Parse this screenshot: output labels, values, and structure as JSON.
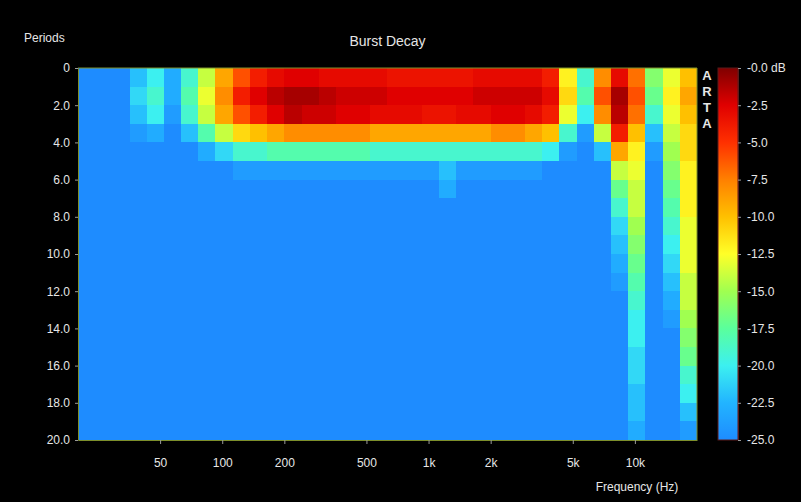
{
  "chart_data": {
    "type": "heatmap",
    "title": "Burst Decay",
    "x_label": "Frequency (Hz)",
    "y_label": "Periods",
    "annotation": "ARTA",
    "log": "x",
    "xlim": [
      20,
      20000
    ],
    "ylim": [
      0,
      20
    ],
    "xticks": [
      50,
      100,
      200,
      500,
      {
        "value": 1000,
        "label": "1k"
      },
      {
        "value": 2000,
        "label": "2k"
      },
      {
        "value": 5000,
        "label": "5k"
      },
      {
        "value": 10000,
        "label": "10k"
      }
    ],
    "yticks": [
      0,
      {
        "value": 2,
        "label": "2.0"
      },
      {
        "value": 4,
        "label": "4.0"
      },
      {
        "value": 6,
        "label": "6.0"
      },
      {
        "value": 8,
        "label": "8.0"
      },
      {
        "value": 10,
        "label": "10.0"
      },
      {
        "value": 12,
        "label": "12.0"
      },
      {
        "value": 14,
        "label": "14.0"
      },
      {
        "value": 16,
        "label": "16.0"
      },
      {
        "value": 18,
        "label": "18.0"
      },
      {
        "value": 20,
        "label": "20.0"
      }
    ],
    "colorbar_lim": [
      -25,
      0
    ],
    "colorbar_ticks": [
      {
        "value": 0,
        "label": "-0.0 dB"
      },
      -2.5,
      {
        "value": -5,
        "label": "-5.0"
      },
      -7.5,
      {
        "value": -10,
        "label": "-10.0"
      },
      -12.5,
      {
        "value": -15,
        "label": "-15.0"
      },
      -17.5,
      {
        "value": -20,
        "label": "-20.0"
      },
      -22.5,
      {
        "value": -25,
        "label": "-25.0"
      }
    ],
    "x": [
      22,
      26.7,
      32.3,
      39.1,
      47.4,
      57.5,
      69.6,
      84.3,
      102,
      124,
      150,
      182,
      220,
      267,
      323,
      391,
      474,
      574,
      696,
      843,
      1021,
      1237,
      1499,
      1816,
      2200,
      2665,
      3229,
      3912,
      4739,
      5742,
      6956,
      8427,
      10210,
      12369,
      14985,
      18154
    ],
    "y": [
      0.5,
      1.5,
      2.5,
      3.5,
      4.5,
      5.5,
      6.5,
      7.5,
      8.5,
      9.5,
      10.5,
      11.5,
      12.5,
      13.5,
      14.5,
      15.5,
      16.5,
      17.5,
      18.5,
      19.5
    ],
    "values": [
      [
        -25,
        -25,
        -25,
        -22,
        -20,
        -23,
        -19,
        -14,
        -9,
        -6,
        -4,
        -3,
        -2.5,
        -2.5,
        -3,
        -3,
        -3,
        -3,
        -3.5,
        -3.5,
        -3.5,
        -3.5,
        -3.5,
        -3,
        -3,
        -3,
        -3,
        -4,
        -12,
        -19,
        -8,
        -3,
        -7,
        -16,
        -13,
        -10
      ],
      [
        -25,
        -25,
        -25,
        -21,
        -19,
        -23,
        -18,
        -13,
        -8,
        -4,
        -2.5,
        -1.5,
        -1,
        -1,
        -1.5,
        -2,
        -2,
        -2,
        -2.5,
        -2.5,
        -2.5,
        -2.5,
        -2.5,
        -2,
        -2,
        -2,
        -2,
        -3,
        -11,
        -18,
        -6,
        -1,
        -6,
        -17,
        -12,
        -9
      ],
      [
        -25,
        -25,
        -25,
        -22,
        -20,
        -24,
        -19,
        -14,
        -9,
        -6,
        -4,
        -2.5,
        -1.5,
        -2,
        -2,
        -2.5,
        -2.5,
        -3,
        -3,
        -3,
        -3.5,
        -3.5,
        -3,
        -3,
        -2.5,
        -2.5,
        -3,
        -4,
        -13,
        -20,
        -8,
        -1.5,
        -7,
        -19,
        -13,
        -10
      ],
      [
        -25,
        -25,
        -25,
        -24,
        -23,
        -25,
        -22,
        -18,
        -14,
        -11,
        -10,
        -9,
        -8,
        -8,
        -8,
        -8,
        -8,
        -9,
        -9,
        -9,
        -9,
        -9,
        -9,
        -9,
        -8,
        -8,
        -9,
        -10,
        -19,
        -24,
        -14,
        -4,
        -10,
        -22,
        -14,
        -11
      ],
      [
        -25,
        -25,
        -25,
        -25,
        -25,
        -25,
        -25,
        -23,
        -21,
        -19,
        -19,
        -18,
        -18,
        -18,
        -18,
        -18,
        -18,
        -19,
        -19,
        -19,
        -19,
        -19,
        -19,
        -19,
        -19,
        -19,
        -19,
        -20,
        -24,
        -25,
        -22,
        -9,
        -12,
        -24,
        -15,
        -11
      ],
      [
        -25,
        -25,
        -25,
        -25,
        -25,
        -25,
        -25,
        -25,
        -25,
        -24,
        -24,
        -24,
        -24,
        -24,
        -24,
        -24,
        -24,
        -24,
        -24,
        -24,
        -24,
        -22,
        -24,
        -24,
        -24,
        -24,
        -24,
        -25,
        -25,
        -25,
        -25,
        -14,
        -13,
        -25,
        -16,
        -12
      ],
      [
        -25,
        -25,
        -25,
        -25,
        -25,
        -25,
        -25,
        -25,
        -25,
        -25,
        -25,
        -25,
        -25,
        -25,
        -25,
        -25,
        -25,
        -25,
        -25,
        -25,
        -25,
        -23,
        -25,
        -25,
        -25,
        -25,
        -25,
        -25,
        -25,
        -25,
        -25,
        -17,
        -14,
        -25,
        -17,
        -12
      ],
      [
        -25,
        -25,
        -25,
        -25,
        -25,
        -25,
        -25,
        -25,
        -25,
        -25,
        -25,
        -25,
        -25,
        -25,
        -25,
        -25,
        -25,
        -25,
        -25,
        -25,
        -25,
        -25,
        -25,
        -25,
        -25,
        -25,
        -25,
        -25,
        -25,
        -25,
        -25,
        -19,
        -14,
        -25,
        -18,
        -12
      ],
      [
        -25,
        -25,
        -25,
        -25,
        -25,
        -25,
        -25,
        -25,
        -25,
        -25,
        -25,
        -25,
        -25,
        -25,
        -25,
        -25,
        -25,
        -25,
        -25,
        -25,
        -25,
        -25,
        -25,
        -25,
        -25,
        -25,
        -25,
        -25,
        -25,
        -25,
        -25,
        -21,
        -15,
        -25,
        -19,
        -13
      ],
      [
        -25,
        -25,
        -25,
        -25,
        -25,
        -25,
        -25,
        -25,
        -25,
        -25,
        -25,
        -25,
        -25,
        -25,
        -25,
        -25,
        -25,
        -25,
        -25,
        -25,
        -25,
        -25,
        -25,
        -25,
        -25,
        -25,
        -25,
        -25,
        -25,
        -25,
        -25,
        -22,
        -16,
        -25,
        -20,
        -13
      ],
      [
        -25,
        -25,
        -25,
        -25,
        -25,
        -25,
        -25,
        -25,
        -25,
        -25,
        -25,
        -25,
        -25,
        -25,
        -25,
        -25,
        -25,
        -25,
        -25,
        -25,
        -25,
        -25,
        -25,
        -25,
        -25,
        -25,
        -25,
        -25,
        -25,
        -25,
        -25,
        -23,
        -17,
        -25,
        -21,
        -13
      ],
      [
        -25,
        -25,
        -25,
        -25,
        -25,
        -25,
        -25,
        -25,
        -25,
        -25,
        -25,
        -25,
        -25,
        -25,
        -25,
        -25,
        -25,
        -25,
        -25,
        -25,
        -25,
        -25,
        -25,
        -25,
        -25,
        -25,
        -25,
        -25,
        -25,
        -25,
        -25,
        -24,
        -18,
        -25,
        -22,
        -14
      ],
      [
        -25,
        -25,
        -25,
        -25,
        -25,
        -25,
        -25,
        -25,
        -25,
        -25,
        -25,
        -25,
        -25,
        -25,
        -25,
        -25,
        -25,
        -25,
        -25,
        -25,
        -25,
        -25,
        -25,
        -25,
        -25,
        -25,
        -25,
        -25,
        -25,
        -25,
        -25,
        -25,
        -19,
        -25,
        -23,
        -14
      ],
      [
        -25,
        -25,
        -25,
        -25,
        -25,
        -25,
        -25,
        -25,
        -25,
        -25,
        -25,
        -25,
        -25,
        -25,
        -25,
        -25,
        -25,
        -25,
        -25,
        -25,
        -25,
        -25,
        -25,
        -25,
        -25,
        -25,
        -25,
        -25,
        -25,
        -25,
        -25,
        -25,
        -20,
        -25,
        -24,
        -15
      ],
      [
        -25,
        -25,
        -25,
        -25,
        -25,
        -25,
        -25,
        -25,
        -25,
        -25,
        -25,
        -25,
        -25,
        -25,
        -25,
        -25,
        -25,
        -25,
        -25,
        -25,
        -25,
        -25,
        -25,
        -25,
        -25,
        -25,
        -25,
        -25,
        -25,
        -25,
        -25,
        -25,
        -20,
        -25,
        -25,
        -16
      ],
      [
        -25,
        -25,
        -25,
        -25,
        -25,
        -25,
        -25,
        -25,
        -25,
        -25,
        -25,
        -25,
        -25,
        -25,
        -25,
        -25,
        -25,
        -25,
        -25,
        -25,
        -25,
        -25,
        -25,
        -25,
        -25,
        -25,
        -25,
        -25,
        -25,
        -25,
        -25,
        -25,
        -21,
        -25,
        -25,
        -17
      ],
      [
        -25,
        -25,
        -25,
        -25,
        -25,
        -25,
        -25,
        -25,
        -25,
        -25,
        -25,
        -25,
        -25,
        -25,
        -25,
        -25,
        -25,
        -25,
        -25,
        -25,
        -25,
        -25,
        -25,
        -25,
        -25,
        -25,
        -25,
        -25,
        -25,
        -25,
        -25,
        -25,
        -21,
        -25,
        -25,
        -19
      ],
      [
        -25,
        -25,
        -25,
        -25,
        -25,
        -25,
        -25,
        -25,
        -25,
        -25,
        -25,
        -25,
        -25,
        -25,
        -25,
        -25,
        -25,
        -25,
        -25,
        -25,
        -25,
        -25,
        -25,
        -25,
        -25,
        -25,
        -25,
        -25,
        -25,
        -25,
        -25,
        -25,
        -22,
        -25,
        -25,
        -20
      ],
      [
        -25,
        -25,
        -25,
        -25,
        -25,
        -25,
        -25,
        -25,
        -25,
        -25,
        -25,
        -25,
        -25,
        -25,
        -25,
        -25,
        -25,
        -25,
        -25,
        -25,
        -25,
        -25,
        -25,
        -25,
        -25,
        -25,
        -25,
        -25,
        -25,
        -25,
        -25,
        -25,
        -22,
        -25,
        -25,
        -22
      ],
      [
        -25,
        -25,
        -25,
        -25,
        -25,
        -25,
        -25,
        -25,
        -25,
        -25,
        -25,
        -25,
        -25,
        -25,
        -25,
        -25,
        -25,
        -25,
        -25,
        -25,
        -25,
        -25,
        -25,
        -25,
        -25,
        -25,
        -25,
        -25,
        -25,
        -25,
        -25,
        -25,
        -23,
        -25,
        -25,
        -24
      ]
    ]
  }
}
